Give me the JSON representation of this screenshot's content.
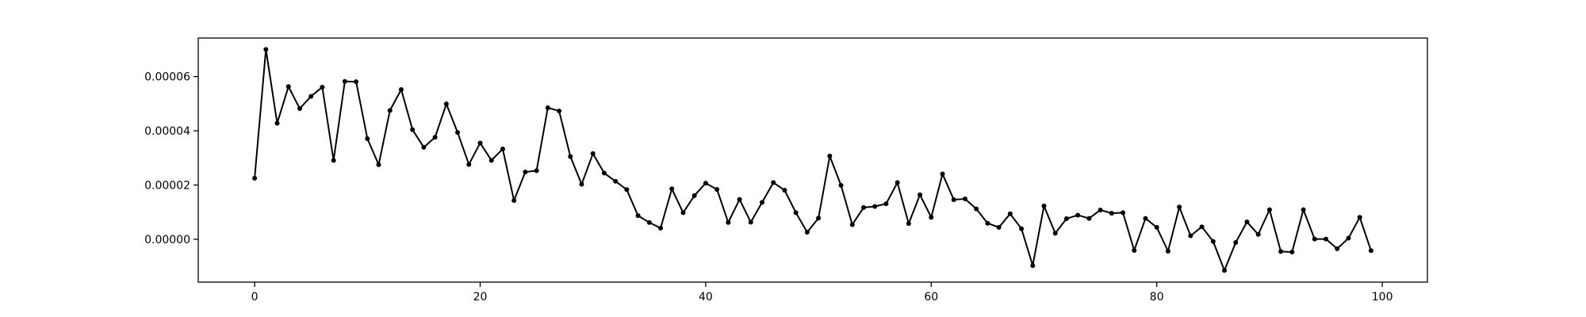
{
  "chart_data": {
    "type": "line",
    "title": "",
    "xlabel": "",
    "ylabel": "",
    "xlim": [
      -5,
      104
    ],
    "ylim": [
      -1.58e-05,
      7.42e-05
    ],
    "grid": false,
    "legend": false,
    "marker": "dot",
    "line_color": "#000000",
    "x_ticks": [
      0,
      20,
      40,
      60,
      80,
      100
    ],
    "x_tick_labels": [
      "0",
      "20",
      "40",
      "60",
      "80",
      "100"
    ],
    "y_ticks": [
      0,
      2e-05,
      4e-05,
      6e-05
    ],
    "y_tick_labels": [
      "0.00000",
      "0.00002",
      "0.00004",
      "0.00006"
    ],
    "series": [
      {
        "x": [
          0,
          1,
          2,
          3,
          4,
          5,
          6,
          7,
          8,
          9,
          10,
          11,
          12,
          13,
          14,
          15,
          16,
          17,
          18,
          19,
          20,
          21,
          22,
          23,
          24,
          25,
          26,
          27,
          28,
          29,
          30,
          31,
          32,
          33,
          34,
          35,
          36,
          37,
          38,
          39,
          40,
          41,
          42,
          43,
          44,
          45,
          46,
          47,
          48,
          49,
          50,
          51,
          52,
          53,
          54,
          55,
          56,
          57,
          58,
          59,
          60,
          61,
          62,
          63,
          64,
          65,
          66,
          67,
          68,
          69,
          70,
          71,
          72,
          73,
          74,
          75,
          76,
          77,
          78,
          79,
          80,
          81,
          82,
          83,
          84,
          85,
          86,
          87,
          88,
          89,
          90,
          91,
          92,
          93,
          94,
          95,
          96,
          97,
          98,
          99
        ],
        "values": [
          2.25e-05,
          7e-05,
          4.28e-05,
          5.63e-05,
          4.82e-05,
          5.27e-05,
          5.61e-05,
          2.91e-05,
          5.82e-05,
          5.81e-05,
          3.71e-05,
          2.75e-05,
          4.75e-05,
          5.52e-05,
          4.04e-05,
          3.39e-05,
          3.76e-05,
          4.99e-05,
          3.94e-05,
          2.76e-05,
          3.55e-05,
          2.91e-05,
          3.33e-05,
          1.43e-05,
          2.48e-05,
          2.53e-05,
          4.85e-05,
          4.73e-05,
          3.05e-05,
          2.03e-05,
          3.16e-05,
          2.44e-05,
          2.14e-05,
          1.83e-05,
          8.7e-06,
          6.2e-06,
          4.1e-06,
          1.86e-05,
          9.8e-06,
          1.61e-05,
          2.07e-05,
          1.84e-05,
          6.2e-06,
          1.47e-05,
          6.3e-06,
          1.36e-05,
          2.09e-05,
          1.81e-05,
          9.8e-06,
          2.6e-06,
          7.8e-06,
          3.07e-05,
          1.99e-05,
          5.4e-06,
          1.17e-05,
          1.21e-05,
          1.31e-05,
          2.09e-05,
          5.8e-06,
          1.64e-05,
          8.1e-06,
          2.41e-05,
          1.46e-05,
          1.49e-05,
          1.12e-05,
          5.9e-06,
          4.4e-06,
          9.4e-06,
          3.9e-06,
          -9.7e-06,
          1.23e-05,
          2.2e-06,
          7.6e-06,
          8.9e-06,
          7.7e-06,
          1.08e-05,
          9.6e-06,
          9.8e-06,
          -4.1e-06,
          7.7e-06,
          4.4e-06,
          -4.4e-06,
          1.19e-05,
          1.3e-06,
          4.6e-06,
          -8e-07,
          -1.15e-05,
          -1.2e-06,
          6.4e-06,
          1.8e-06,
          1.09e-05,
          -4.5e-06,
          -4.7e-06,
          1.09e-05,
          1e-07,
          1e-07,
          -3.5e-06,
          4e-07,
          8.1e-06,
          -4.2e-06
        ]
      }
    ]
  }
}
